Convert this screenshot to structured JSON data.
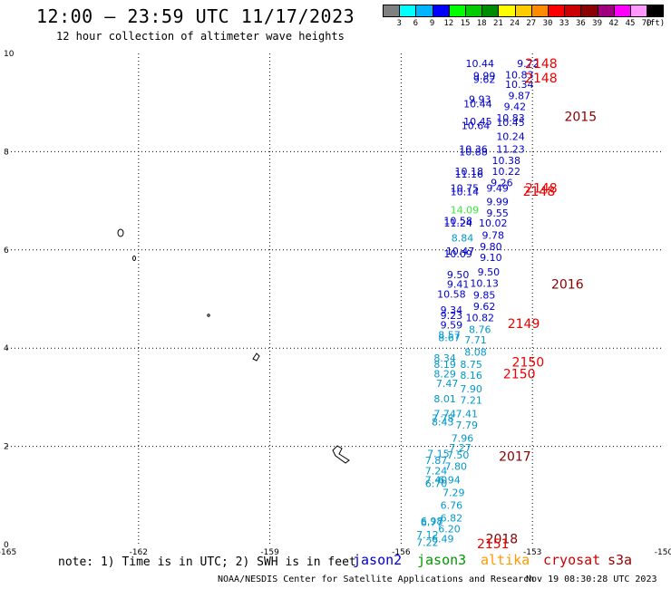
{
  "title": "12:00 – 23:59 UTC 11/17/2023",
  "subtitle": "12 hour collection of altimeter wave heights",
  "colorbar": {
    "unit": "(ft)",
    "cells": [
      {
        "label": "3",
        "color": "#808080"
      },
      {
        "label": "6",
        "color": "#00ffff"
      },
      {
        "label": "9",
        "color": "#00b4ff"
      },
      {
        "label": "12",
        "color": "#0000ff"
      },
      {
        "label": "15",
        "color": "#00ff00"
      },
      {
        "label": "18",
        "color": "#00cc00"
      },
      {
        "label": "21",
        "color": "#008c00"
      },
      {
        "label": "24",
        "color": "#ffff00"
      },
      {
        "label": "27",
        "color": "#ffcc00"
      },
      {
        "label": "30",
        "color": "#ff8c00"
      },
      {
        "label": "33",
        "color": "#ff0000"
      },
      {
        "label": "36",
        "color": "#cc0000"
      },
      {
        "label": "39",
        "color": "#8b0000"
      },
      {
        "label": "42",
        "color": "#a00080"
      },
      {
        "label": "45",
        "color": "#ff00ff"
      },
      {
        "label": "70",
        "color": "#ff99ff"
      },
      {
        "label": "",
        "color": "#000000"
      }
    ]
  },
  "note": "note: 1) Time is in UTC; 2) SWH is in feet",
  "satellites": [
    {
      "name": "jason2",
      "color": "#0000cc"
    },
    {
      "name": "jason3",
      "color": "#009900"
    },
    {
      "name": "altika",
      "color": "#ff9900"
    },
    {
      "name": "cryosat",
      "color": "#cc0000"
    },
    {
      "name": "s3a",
      "color": "#990000"
    }
  ],
  "credit": "NOAA/NESDIS Center for Satellite Applications and Research",
  "timestamp": "Nov 19 08:30:28 UTC 2023",
  "chart_data": {
    "type": "scatter",
    "xlim": [
      -165,
      -150
    ],
    "ylim": [
      0,
      10
    ],
    "x_ticks": [
      "-165",
      "-162",
      "-159",
      "-156",
      "-153",
      "-150"
    ],
    "y_ticks": [
      "0",
      "2",
      "4",
      "6",
      "8",
      "10"
    ],
    "grid": true,
    "time_labels": [
      {
        "x": -152.8,
        "y": 9.8,
        "text": "2148",
        "color": "#ee0000"
      },
      {
        "x": -152.8,
        "y": 9.5,
        "text": "2148",
        "color": "#ee0000"
      },
      {
        "x": -151.9,
        "y": 8.72,
        "text": "2015",
        "color": "#880000"
      },
      {
        "x": -152.8,
        "y": 7.26,
        "text": "2148",
        "color": "#ee0000"
      },
      {
        "x": -152.85,
        "y": 7.2,
        "text": "2148",
        "color": "#ee0000"
      },
      {
        "x": -152.2,
        "y": 5.3,
        "text": "2016",
        "color": "#880000"
      },
      {
        "x": -153.2,
        "y": 4.5,
        "text": "2149",
        "color": "#ee0000"
      },
      {
        "x": -153.1,
        "y": 3.72,
        "text": "2150",
        "color": "#ee0000"
      },
      {
        "x": -153.3,
        "y": 3.48,
        "text": "2150",
        "color": "#ee0000"
      },
      {
        "x": -153.4,
        "y": 1.8,
        "text": "2017",
        "color": "#880000"
      },
      {
        "x": -153.7,
        "y": 0.12,
        "text": "2018",
        "color": "#880000"
      },
      {
        "x": -153.9,
        "y": 0.02,
        "text": "2151",
        "color": "#ee0000"
      }
    ],
    "series": [
      {
        "name": "",
        "points": [
          {
            "x": -154.2,
            "y": 9.8,
            "v": "10.44",
            "color": "#0000cc"
          },
          {
            "x": -153.1,
            "y": 9.8,
            "v": "9.72",
            "color": "#0000cc"
          },
          {
            "x": -154.1,
            "y": 9.55,
            "v": "9.99",
            "color": "#0000cc"
          },
          {
            "x": -153.3,
            "y": 9.57,
            "v": "10.83",
            "color": "#0000cc"
          },
          {
            "x": -154.1,
            "y": 9.47,
            "v": "9.62",
            "color": "#0000cc"
          },
          {
            "x": -153.3,
            "y": 9.37,
            "v": "10.34",
            "color": "#0000cc"
          },
          {
            "x": -153.3,
            "y": 9.14,
            "v": "9.87",
            "color": "#0000cc"
          },
          {
            "x": -154.2,
            "y": 9.07,
            "v": "9.93",
            "color": "#0000cc"
          },
          {
            "x": -154.25,
            "y": 8.98,
            "v": "10.44",
            "color": "#0000cc"
          },
          {
            "x": -153.4,
            "y": 8.92,
            "v": "9.42",
            "color": "#0000cc"
          },
          {
            "x": -154.25,
            "y": 8.62,
            "v": "10.45",
            "color": "#0000cc"
          },
          {
            "x": -153.5,
            "y": 8.69,
            "v": "10.83",
            "color": "#0000cc"
          },
          {
            "x": -154.3,
            "y": 8.53,
            "v": "10.64",
            "color": "#0000cc"
          },
          {
            "x": -153.5,
            "y": 8.6,
            "v": "10.45",
            "color": "#0000cc"
          },
          {
            "x": -153.5,
            "y": 8.31,
            "v": "10.24",
            "color": "#0000cc"
          },
          {
            "x": -154.35,
            "y": 8.05,
            "v": "10.36",
            "color": "#0000cc"
          },
          {
            "x": -153.5,
            "y": 8.05,
            "v": "11.23",
            "color": "#0000cc"
          },
          {
            "x": -154.35,
            "y": 8.0,
            "v": "10.88",
            "color": "#0000cc"
          },
          {
            "x": -153.6,
            "y": 7.82,
            "v": "10.38",
            "color": "#0000cc"
          },
          {
            "x": -154.45,
            "y": 7.6,
            "v": "10.18",
            "color": "#0000cc"
          },
          {
            "x": -153.6,
            "y": 7.6,
            "v": "10.22",
            "color": "#0000cc"
          },
          {
            "x": -154.45,
            "y": 7.55,
            "v": "11.16",
            "color": "#0000cc"
          },
          {
            "x": -153.7,
            "y": 7.37,
            "v": "9.26",
            "color": "#0000cc"
          },
          {
            "x": -154.55,
            "y": 7.26,
            "v": "10.75",
            "color": "#0000cc"
          },
          {
            "x": -153.8,
            "y": 7.26,
            "v": "9.49",
            "color": "#0000cc"
          },
          {
            "x": -154.55,
            "y": 7.19,
            "v": "10.14",
            "color": "#0000cc"
          },
          {
            "x": -153.8,
            "y": 6.98,
            "v": "9.99",
            "color": "#0000cc"
          },
          {
            "x": -154.55,
            "y": 6.82,
            "v": "14.09",
            "color": "#33ee33"
          },
          {
            "x": -153.8,
            "y": 6.75,
            "v": "9.55",
            "color": "#0000cc"
          },
          {
            "x": -154.7,
            "y": 6.6,
            "v": "10.58",
            "color": "#0000cc"
          },
          {
            "x": -153.9,
            "y": 6.55,
            "v": "10.02",
            "color": "#0000cc"
          },
          {
            "x": -154.7,
            "y": 6.55,
            "v": "11.24",
            "color": "#0000cc"
          },
          {
            "x": -153.9,
            "y": 6.3,
            "v": "9.78",
            "color": "#0000cc"
          },
          {
            "x": -154.6,
            "y": 6.25,
            "v": "8.84",
            "color": "#0099cc"
          },
          {
            "x": -153.95,
            "y": 6.07,
            "v": "9.80",
            "color": "#0000cc"
          },
          {
            "x": -154.65,
            "y": 5.98,
            "v": "10.47",
            "color": "#0000cc"
          },
          {
            "x": -154.7,
            "y": 5.92,
            "v": "10.09",
            "color": "#0000cc"
          },
          {
            "x": -153.95,
            "y": 5.85,
            "v": "9.10",
            "color": "#0000cc"
          },
          {
            "x": -154.0,
            "y": 5.55,
            "v": "9.50",
            "color": "#0000cc"
          },
          {
            "x": -154.7,
            "y": 5.5,
            "v": "9.50",
            "color": "#0000cc"
          },
          {
            "x": -154.1,
            "y": 5.32,
            "v": "10.13",
            "color": "#0000cc"
          },
          {
            "x": -154.7,
            "y": 5.3,
            "v": "9.41",
            "color": "#0000cc"
          },
          {
            "x": -154.85,
            "y": 5.1,
            "v": "10.58",
            "color": "#0000cc"
          },
          {
            "x": -154.1,
            "y": 5.08,
            "v": "9.85",
            "color": "#0000cc"
          },
          {
            "x": -154.1,
            "y": 4.85,
            "v": "9.62",
            "color": "#0000cc"
          },
          {
            "x": -154.85,
            "y": 4.78,
            "v": "9.34",
            "color": "#0000cc"
          },
          {
            "x": -154.85,
            "y": 4.67,
            "v": "9.23",
            "color": "#0000cc"
          },
          {
            "x": -154.2,
            "y": 4.62,
            "v": "10.82",
            "color": "#0000cc"
          },
          {
            "x": -154.85,
            "y": 4.47,
            "v": "9.59",
            "color": "#0000cc"
          },
          {
            "x": -154.2,
            "y": 4.38,
            "v": "8.76",
            "color": "#0099cc"
          },
          {
            "x": -154.9,
            "y": 4.27,
            "v": "8.57",
            "color": "#0099cc"
          },
          {
            "x": -154.9,
            "y": 4.22,
            "v": "8.67",
            "color": "#0099cc"
          },
          {
            "x": -154.3,
            "y": 4.17,
            "v": "7.71",
            "color": "#0099cc"
          },
          {
            "x": -154.3,
            "y": 3.92,
            "v": "8.08",
            "color": "#0099cc"
          },
          {
            "x": -155.0,
            "y": 3.8,
            "v": "8.34",
            "color": "#0099cc"
          },
          {
            "x": -155.0,
            "y": 3.67,
            "v": "8.19",
            "color": "#0099cc"
          },
          {
            "x": -154.4,
            "y": 3.67,
            "v": "8.75",
            "color": "#0099cc"
          },
          {
            "x": -155.0,
            "y": 3.48,
            "v": "8.29",
            "color": "#0099cc"
          },
          {
            "x": -154.4,
            "y": 3.45,
            "v": "8.16",
            "color": "#0099cc"
          },
          {
            "x": -154.95,
            "y": 3.28,
            "v": "7.47",
            "color": "#0099cc"
          },
          {
            "x": -154.4,
            "y": 3.17,
            "v": "7.90",
            "color": "#0099cc"
          },
          {
            "x": -155.0,
            "y": 2.97,
            "v": "8.01",
            "color": "#0099cc"
          },
          {
            "x": -154.4,
            "y": 2.94,
            "v": "7.21",
            "color": "#0099cc"
          },
          {
            "x": -155.0,
            "y": 2.67,
            "v": "7.74",
            "color": "#0099cc"
          },
          {
            "x": -154.5,
            "y": 2.67,
            "v": "7.41",
            "color": "#0099cc"
          },
          {
            "x": -155.05,
            "y": 2.57,
            "v": "7.78",
            "color": "#0099cc"
          },
          {
            "x": -155.05,
            "y": 2.5,
            "v": "8.43",
            "color": "#0099cc"
          },
          {
            "x": -154.5,
            "y": 2.44,
            "v": "7.79",
            "color": "#0099cc"
          },
          {
            "x": -154.6,
            "y": 2.17,
            "v": "7.96",
            "color": "#0099cc"
          },
          {
            "x": -154.65,
            "y": 1.97,
            "v": "7.27",
            "color": "#0099cc"
          },
          {
            "x": -155.15,
            "y": 1.85,
            "v": "7.15",
            "color": "#0099cc"
          },
          {
            "x": -154.7,
            "y": 1.83,
            "v": "7.50",
            "color": "#0099cc"
          },
          {
            "x": -155.2,
            "y": 1.72,
            "v": "7.87",
            "color": "#0099cc"
          },
          {
            "x": -154.75,
            "y": 1.6,
            "v": "7.80",
            "color": "#0099cc"
          },
          {
            "x": -155.2,
            "y": 1.5,
            "v": "7.24",
            "color": "#0099cc"
          },
          {
            "x": -155.2,
            "y": 1.32,
            "v": "7.40",
            "color": "#0099cc"
          },
          {
            "x": -154.9,
            "y": 1.32,
            "v": "6.94",
            "color": "#0099cc"
          },
          {
            "x": -155.2,
            "y": 1.25,
            "v": "6.70",
            "color": "#0099cc"
          },
          {
            "x": -154.8,
            "y": 1.06,
            "v": "7.29",
            "color": "#0099cc"
          },
          {
            "x": -154.85,
            "y": 0.8,
            "v": "6.76",
            "color": "#0099cc"
          },
          {
            "x": -154.85,
            "y": 0.54,
            "v": "6.82",
            "color": "#0099cc"
          },
          {
            "x": -155.3,
            "y": 0.48,
            "v": "6.98",
            "color": "#0099cc"
          },
          {
            "x": -155.3,
            "y": 0.45,
            "v": "6.77",
            "color": "#0099cc"
          },
          {
            "x": -154.9,
            "y": 0.32,
            "v": "6.20",
            "color": "#0099cc"
          },
          {
            "x": -155.4,
            "y": 0.2,
            "v": "7.12",
            "color": "#0099cc"
          },
          {
            "x": -155.05,
            "y": 0.12,
            "v": "6.49",
            "color": "#0099cc"
          },
          {
            "x": -155.4,
            "y": 0.05,
            "v": "7.22",
            "color": "#0099cc"
          }
        ]
      }
    ]
  }
}
